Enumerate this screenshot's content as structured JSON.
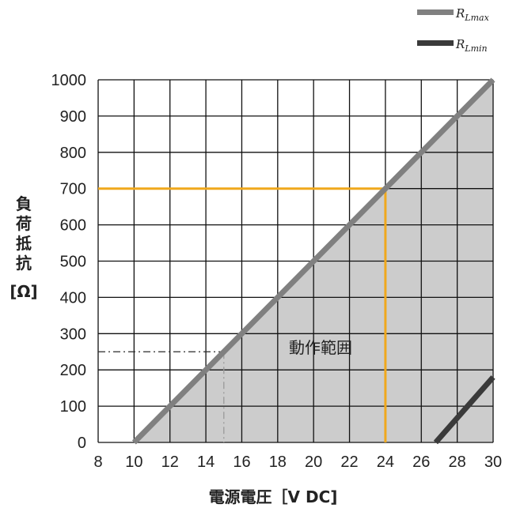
{
  "chart_data": {
    "type": "line",
    "title": "",
    "xlabel": "電源電圧［V DC]",
    "ylabel_chars": [
      "負",
      "荷",
      "抵",
      "抗"
    ],
    "ylabel_unit": "[Ω]",
    "xlim": [
      8,
      30
    ],
    "ylim": [
      0,
      1000
    ],
    "x_ticks": [
      "8",
      "10",
      "12",
      "14",
      "16",
      "18",
      "20",
      "22",
      "24",
      "26",
      "28",
      "30"
    ],
    "y_ticks": [
      "0",
      "100",
      "200",
      "300",
      "400",
      "500",
      "600",
      "700",
      "800",
      "900",
      "1000"
    ],
    "grid": true,
    "legend_position": "top-right",
    "legend": [
      {
        "main": "R",
        "sub": "Lmax",
        "color": "#808080"
      },
      {
        "main": "R",
        "sub": "Lmin",
        "color": "#3a3a3a"
      }
    ],
    "series": [
      {
        "name": "RLmax",
        "color": "#808080",
        "points": [
          [
            10,
            0
          ],
          [
            30,
            1000
          ]
        ]
      },
      {
        "name": "RLmin",
        "color": "#3a3a3a",
        "points": [
          [
            26.8,
            0
          ],
          [
            30,
            180
          ]
        ]
      }
    ],
    "region": {
      "label": "動作範囲",
      "color": "#cccccc"
    },
    "annotations": [
      {
        "color": "#f0a81c",
        "style": "solid",
        "x": 24,
        "y": 700
      },
      {
        "color": "#2a2a2a",
        "style": "dashdot",
        "x": 15,
        "y": 250
      }
    ]
  }
}
